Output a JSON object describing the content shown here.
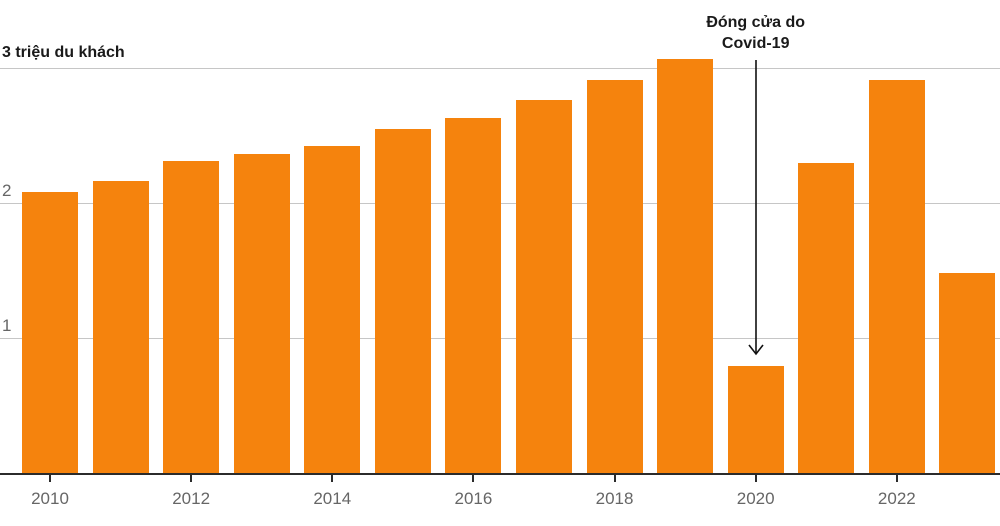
{
  "chart_data": {
    "type": "bar",
    "title": "3 triệu du khách",
    "unit_label": "triệu du khách",
    "categories": [
      2010,
      2011,
      2012,
      2013,
      2014,
      2015,
      2016,
      2017,
      2018,
      2019,
      2020,
      2021,
      2022,
      2023
    ],
    "values": [
      2.08,
      2.16,
      2.31,
      2.36,
      2.42,
      2.55,
      2.63,
      2.76,
      2.91,
      3.07,
      0.79,
      2.3,
      2.91,
      1.48
    ],
    "ylim": [
      0,
      3.2
    ],
    "ygrid_values": [
      1,
      2,
      3
    ],
    "ytick_labels": [
      1,
      2
    ],
    "xtick_years": [
      2010,
      2012,
      2014,
      2016,
      2018,
      2020,
      2022
    ],
    "grid": "horizontal",
    "legend": "none",
    "annotation": {
      "line1": "Đóng cửa do",
      "line2": "Covid-19",
      "target_year": 2020
    },
    "colors": {
      "bar": "#F5830D",
      "grid": "#C6C6C6",
      "axis": "#2B2B2B",
      "tick_label": "#666666",
      "text": "#1A1A1A"
    }
  }
}
